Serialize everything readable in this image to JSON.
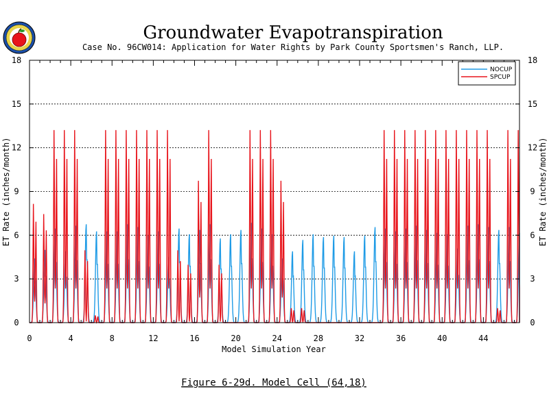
{
  "title": "Groundwater Evapotranspiration",
  "subtitle": "Case No. 96CW014: Application for Water Rights by Park County Sportsmen's Ranch, LLP.",
  "caption": "Figure 6-29d.  Model Cell (64,18)",
  "logo": {
    "icon": "apple-seal-logo"
  },
  "chart_data": {
    "type": "line",
    "title": "Groundwater Evapotranspiration",
    "xlabel": "Model Simulation Year",
    "ylabel_left": "ET Rate (inches/month)",
    "ylabel_right": "ET Rate (inches/month)",
    "xlim": [
      0,
      47.5
    ],
    "ylim": [
      0,
      18
    ],
    "xticks": [
      0,
      4,
      8,
      12,
      16,
      20,
      24,
      28,
      32,
      36,
      40,
      44
    ],
    "xtick_labels": [
      "0",
      "4",
      "8",
      "12",
      "16",
      "20",
      "24",
      "28",
      "32",
      "36",
      "40",
      "44"
    ],
    "yticks": [
      0,
      3,
      6,
      9,
      12,
      15,
      18
    ],
    "ytick_labels": [
      "0",
      "3",
      "6",
      "9",
      "12",
      "15",
      "18"
    ],
    "gridlines_y": [
      3,
      6,
      9,
      12,
      15
    ],
    "legend_position": "top-right",
    "series": [
      {
        "name": "NOCUP",
        "color": "#1e9be6",
        "annual_peaks": [
          4.5,
          5.1,
          6.6,
          5.0,
          6.8,
          6.9,
          6.4,
          6.4,
          6.4,
          6.9,
          6.7,
          6.1,
          6.4,
          4.6,
          6.6,
          6.2,
          6.5,
          6.9,
          5.9,
          6.2,
          6.5,
          7.0,
          6.6,
          6.2,
          4.5,
          5.0,
          5.8,
          6.2,
          6.0,
          6.1,
          6.0,
          5.0,
          6.1,
          6.7,
          6.6,
          6.4,
          6.6,
          6.8,
          6.5,
          6.3,
          6.2,
          5.2,
          6.8,
          6.9,
          6.7,
          6.5,
          6.7,
          6.3
        ]
      },
      {
        "name": "SPCUP",
        "color": "#e8141b",
        "annual_peaks": [
          8.2,
          7.5,
          13.3,
          13.3,
          13.3,
          5.0,
          0.5,
          13.3,
          13.3,
          13.3,
          13.3,
          13.3,
          13.3,
          13.3,
          5.0,
          4.0,
          9.8,
          13.3,
          4.0,
          0.0,
          0.0,
          13.3,
          13.3,
          13.3,
          9.8,
          1.0,
          1.0,
          0.0,
          0.0,
          0.0,
          0.0,
          0.0,
          0.0,
          0.0,
          13.3,
          13.3,
          13.3,
          13.3,
          13.3,
          13.3,
          13.3,
          13.3,
          13.3,
          13.3,
          13.3,
          1.0,
          13.3,
          13.3
        ]
      }
    ]
  }
}
